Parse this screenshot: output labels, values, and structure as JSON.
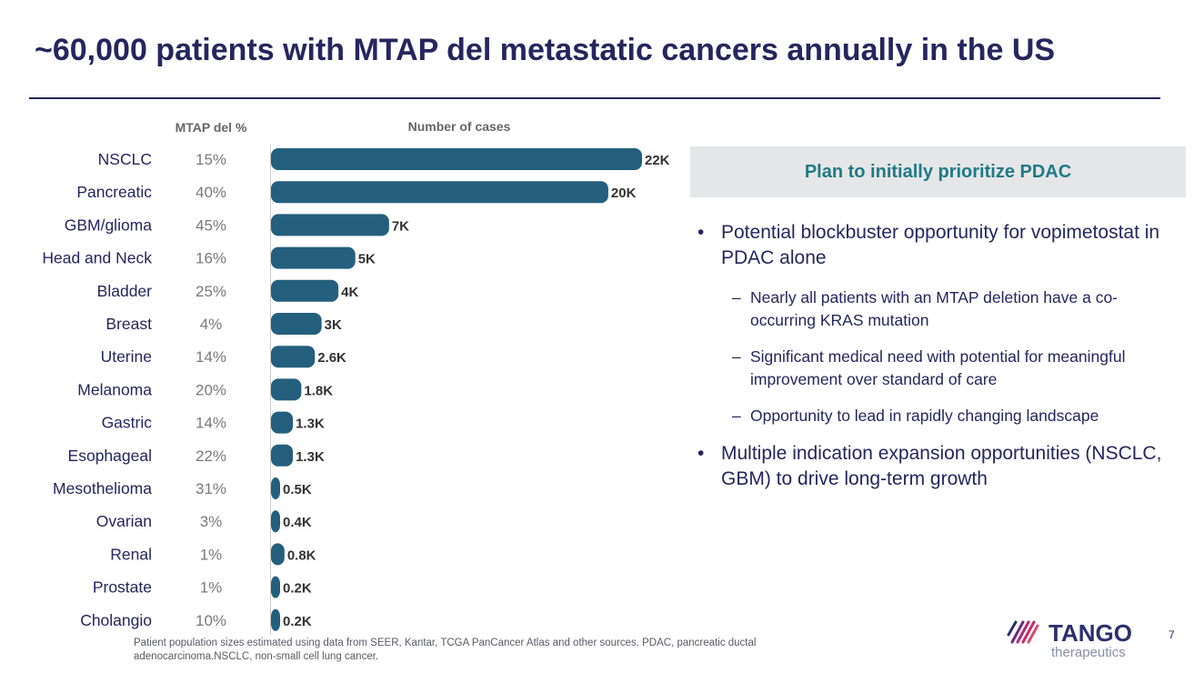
{
  "title": "~60,000 patients with MTAP del metastatic cancers annually in the US",
  "chart_data": {
    "type": "bar",
    "orientation": "horizontal",
    "table_header": "MTAP del %",
    "xlabel": "Number of cases",
    "categories": [
      "NSCLC",
      "Pancreatic",
      "GBM/glioma",
      "Head and Neck",
      "Bladder",
      "Breast",
      "Uterine",
      "Melanoma",
      "Gastric",
      "Esophageal",
      "Mesothelioma",
      "Ovarian",
      "Renal",
      "Prostate",
      "Cholangio"
    ],
    "mtap_del_pct": [
      "15%",
      "40%",
      "45%",
      "16%",
      "25%",
      "4%",
      "14%",
      "20%",
      "14%",
      "22%",
      "31%",
      "3%",
      "1%",
      "1%",
      "10%"
    ],
    "values": [
      22000,
      20000,
      7000,
      5000,
      4000,
      3000,
      2600,
      1800,
      1300,
      1300,
      500,
      400,
      800,
      200,
      200
    ],
    "data_labels": [
      "22K",
      "20K",
      "7K",
      "5K",
      "4K",
      "3K",
      "2.6K",
      "1.8K",
      "1.3K",
      "1.3K",
      "0.5K",
      "0.4K",
      "0.8K",
      "0.2K",
      "0.2K"
    ],
    "xlim": [
      0,
      22000
    ],
    "bar_color": "#245f7d",
    "grid": false
  },
  "panel": {
    "header": "Plan to initially prioritize PDAC",
    "header_color": "#1e7a86",
    "bullets": [
      {
        "text": "Potential blockbuster opportunity for vopimetostat in PDAC alone",
        "sub": [
          "Nearly all patients with an MTAP deletion have a co-occurring KRAS mutation",
          "Significant medical need with potential for meaningful improvement over standard of care",
          "Opportunity to lead in rapidly changing landscape"
        ]
      },
      {
        "text": "Multiple indication expansion opportunities (NSCLC, GBM) to drive long-term growth",
        "sub": []
      }
    ]
  },
  "footnote": "Patient population sizes estimated using data from SEER, Kantar, TCGA PanCancer Atlas and other sources. PDAC, pancreatic ductal adenocarcinoma.NSCLC, non-small cell lung cancer.",
  "logo": {
    "name": "TANGO",
    "sub": "therapeutics",
    "mark_color": "#c8286a"
  },
  "page_number": "7",
  "colors": {
    "title": "#25265e",
    "bar": "#245f7d",
    "panel_bg": "#e5e6e8"
  },
  "bullet_glyph": "•",
  "dash_glyph": "–"
}
